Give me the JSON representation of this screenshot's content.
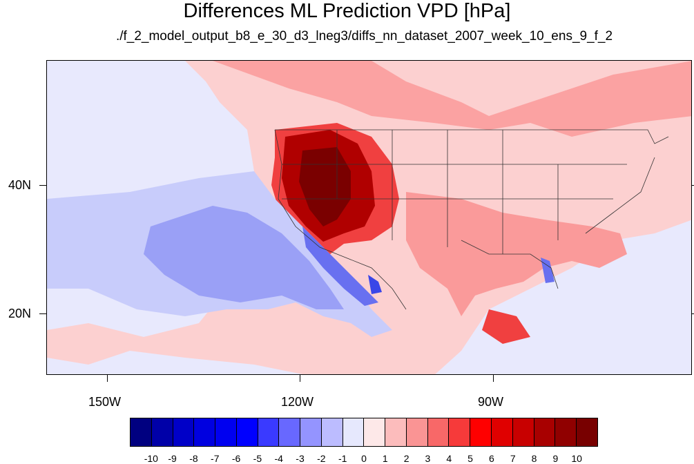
{
  "title": "Differences ML Prediction VPD [hPa]",
  "subtitle": "./f_2_model_output_b8_e_30_d3_lneg3/diffs_nn_dataset_2007_week_10_ens_9_f_2",
  "map": {
    "lat_labels": [
      "40N",
      "20N"
    ],
    "lon_labels": [
      "150W",
      "120W",
      "90W"
    ]
  },
  "colorbar": {
    "labels": [
      "-10",
      "-9",
      "-8",
      "-7",
      "-6",
      "-5",
      "-4",
      "-3",
      "-2",
      "-1",
      "0",
      "1",
      "2",
      "3",
      "4",
      "5",
      "6",
      "7",
      "8",
      "9",
      "10"
    ],
    "colors": [
      "#000080",
      "#0000a8",
      "#0000c8",
      "#0000e0",
      "#0000f0",
      "#0000ff",
      "#3a3aff",
      "#6868ff",
      "#9494ff",
      "#bcbcff",
      "#e6e8fd",
      "#fde8e8",
      "#fcbcbc",
      "#fa9494",
      "#f86868",
      "#f63a3a",
      "#ff0000",
      "#e00000",
      "#c80000",
      "#a80000",
      "#900000",
      "#780000"
    ]
  },
  "palette": {
    "ocean_neutral": "#e8e9fd",
    "light_red": "#fcd0d0",
    "mid_red": "#fa9a9a",
    "red": "#f04040",
    "dark_red": "#b00000",
    "darkest_red": "#7a0000",
    "light_blue": "#c8ccfb",
    "mid_blue": "#9aa0f6",
    "blue": "#6870f0",
    "deep_blue": "#3a46e8"
  }
}
